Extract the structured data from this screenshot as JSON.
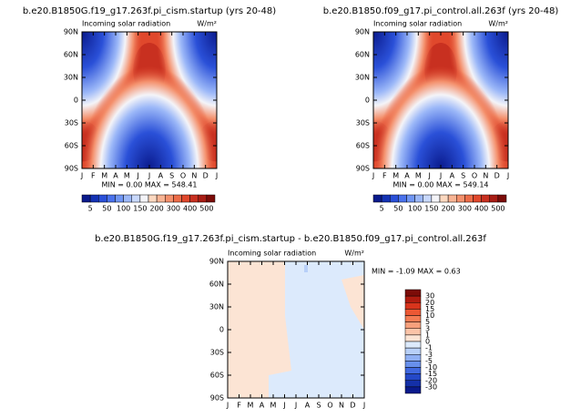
{
  "chart_data": [
    {
      "type": "contour",
      "title": "b.e20.B1850G.f19_g17.263f.pi_cism.startup (yrs 20-48)",
      "subtitle": "Incoming solar radiation",
      "units": "W/m²",
      "stats": "MIN =   0.00 MAX = 548.41",
      "categories": [
        "J",
        "F",
        "M",
        "A",
        "M",
        "J",
        "J",
        "A",
        "S",
        "O",
        "N",
        "D",
        "J"
      ],
      "ylim": [
        -90,
        90
      ],
      "yticks": [
        {
          "value": 90,
          "label": "90N"
        },
        {
          "value": 60,
          "label": "60N"
        },
        {
          "value": 30,
          "label": "30N"
        },
        0,
        {
          "value": -30,
          "label": "30S"
        },
        {
          "value": -60,
          "label": "60S"
        },
        {
          "value": -90,
          "label": "90S"
        }
      ],
      "colorbar": {
        "orientation": "horizontal",
        "levels": [
          5,
          50,
          100,
          150,
          200,
          300,
          400,
          500
        ],
        "colors": [
          "#0a1a8c",
          "#1432b4",
          "#2a50d8",
          "#4a72ec",
          "#7096f4",
          "#9cb8f8",
          "#c8d8fc",
          "#f4f4f8",
          "#fcd8c0",
          "#f8b494",
          "#f4906c",
          "#ec6c48",
          "#e0482c",
          "#c83020",
          "#a81c14",
          "#7c0c08"
        ]
      }
    },
    {
      "type": "contour",
      "title": "b.e20.B1850.f09_g17.pi_control.all.263f (yrs 20-48)",
      "subtitle": "Incoming solar radiation",
      "units": "W/m²",
      "stats": "MIN =   0.00 MAX = 549.14",
      "categories": [
        "J",
        "F",
        "M",
        "A",
        "M",
        "J",
        "J",
        "A",
        "S",
        "O",
        "N",
        "D",
        "J"
      ],
      "ylim": [
        -90,
        90
      ],
      "yticks": [
        {
          "value": 90,
          "label": "90N"
        },
        {
          "value": 60,
          "label": "60N"
        },
        {
          "value": 30,
          "label": "30N"
        },
        0,
        {
          "value": -30,
          "label": "30S"
        },
        {
          "value": -60,
          "label": "60S"
        },
        {
          "value": -90,
          "label": "90S"
        }
      ],
      "colorbar": {
        "orientation": "horizontal",
        "levels": [
          5,
          50,
          100,
          150,
          200,
          300,
          400,
          500
        ],
        "colors": [
          "#0a1a8c",
          "#1432b4",
          "#2a50d8",
          "#4a72ec",
          "#7096f4",
          "#9cb8f8",
          "#c8d8fc",
          "#f4f4f8",
          "#fcd8c0",
          "#f8b494",
          "#f4906c",
          "#ec6c48",
          "#e0482c",
          "#c83020",
          "#a81c14",
          "#7c0c08"
        ]
      }
    },
    {
      "type": "difference",
      "title": "b.e20.B1850G.f19_g17.263f.pi_cism.startup - b.e20.B1850.f09_g17.pi_control.all.263f",
      "subtitle": "Incoming solar radiation",
      "units": "W/m²",
      "stats": "MIN =  -1.09 MAX =   0.63",
      "categories": [
        "J",
        "F",
        "M",
        "A",
        "M",
        "J",
        "J",
        "A",
        "S",
        "O",
        "N",
        "D",
        "J"
      ],
      "ylim": [
        -90,
        90
      ],
      "yticks": [
        {
          "value": 90,
          "label": "90N"
        },
        {
          "value": 60,
          "label": "60N"
        },
        {
          "value": 30,
          "label": "30N"
        },
        0,
        {
          "value": -30,
          "label": "30S"
        },
        {
          "value": -60,
          "label": "60S"
        },
        {
          "value": -90,
          "label": "90S"
        }
      ],
      "colorbar": {
        "orientation": "vertical",
        "levels": [
          30,
          20,
          15,
          10,
          5,
          3,
          1,
          0,
          -1,
          -3,
          -5,
          -10,
          -15,
          -20,
          -30
        ],
        "colors": [
          "#7c0c08",
          "#b01c10",
          "#d8341c",
          "#ec5834",
          "#f47c54",
          "#f8a07c",
          "#fcc4a8",
          "#fce4d4",
          "#dceafc",
          "#b8d0f8",
          "#90b0f4",
          "#6890ec",
          "#4068e0",
          "#2448c8",
          "#1430a8",
          "#0a1a8c"
        ]
      }
    }
  ]
}
